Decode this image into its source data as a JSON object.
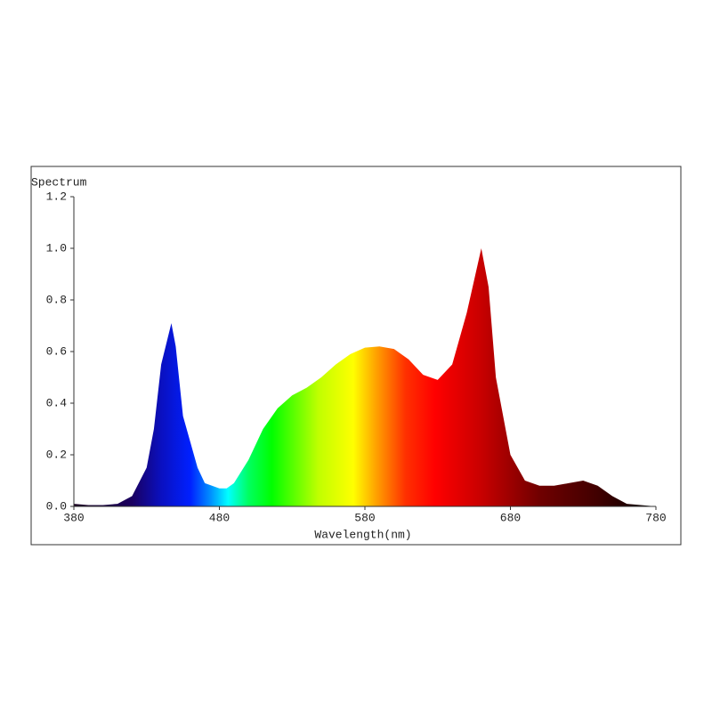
{
  "chart_data": {
    "type": "area",
    "y_label": "Spectrum",
    "x_label": "Wavelength(nm)",
    "x": [
      380,
      390,
      400,
      410,
      420,
      430,
      435,
      440,
      447,
      450,
      455,
      460,
      465,
      470,
      480,
      485,
      490,
      500,
      510,
      520,
      530,
      540,
      550,
      560,
      570,
      580,
      590,
      600,
      610,
      620,
      630,
      640,
      650,
      660,
      665,
      670,
      680,
      690,
      700,
      710,
      720,
      730,
      740,
      750,
      760,
      780
    ],
    "values": [
      0.01,
      0.005,
      0.005,
      0.01,
      0.04,
      0.15,
      0.3,
      0.55,
      0.71,
      0.62,
      0.35,
      0.25,
      0.15,
      0.09,
      0.07,
      0.07,
      0.09,
      0.18,
      0.3,
      0.38,
      0.43,
      0.46,
      0.5,
      0.55,
      0.59,
      0.615,
      0.62,
      0.61,
      0.57,
      0.51,
      0.49,
      0.55,
      0.75,
      1.0,
      0.85,
      0.5,
      0.2,
      0.1,
      0.08,
      0.08,
      0.09,
      0.1,
      0.08,
      0.04,
      0.01,
      0.0
    ],
    "xlim": [
      380,
      780
    ],
    "xticks": [
      380,
      480,
      580,
      680,
      780
    ],
    "ylim": [
      0,
      1.2
    ],
    "yticks": [
      {
        "value": 0,
        "label": "0.0"
      },
      0.2,
      0.4,
      0.6,
      0.8,
      {
        "value": 1,
        "label": "1.0"
      },
      1.2
    ]
  }
}
